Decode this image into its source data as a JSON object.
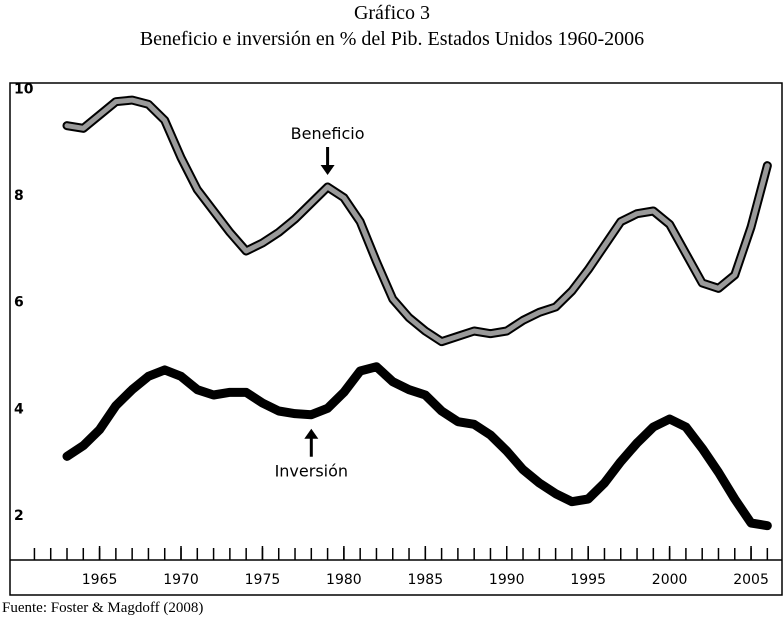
{
  "chart_data": {
    "type": "line",
    "title": "Gráfico 3",
    "subtitle": "Beneficio e inversión en % del Pib. Estados Unidos 1960-2006",
    "source": "Fuente: Foster & Magdoff (2008)",
    "x": [
      1963,
      1964,
      1965,
      1966,
      1967,
      1968,
      1969,
      1970,
      1971,
      1972,
      1973,
      1974,
      1975,
      1976,
      1977,
      1978,
      1979,
      1980,
      1981,
      1982,
      1983,
      1984,
      1985,
      1986,
      1987,
      1988,
      1989,
      1990,
      1991,
      1992,
      1993,
      1994,
      1995,
      1996,
      1997,
      1998,
      1999,
      2000,
      2001,
      2002,
      2003,
      2004,
      2005,
      2006
    ],
    "series": [
      {
        "name": "Beneficio",
        "color": "#9a9a9a",
        "values": [
          9.3,
          9.25,
          9.5,
          9.75,
          9.78,
          9.7,
          9.4,
          8.7,
          8.1,
          7.7,
          7.3,
          6.95,
          7.1,
          7.3,
          7.55,
          7.85,
          8.15,
          7.95,
          7.5,
          6.75,
          6.05,
          5.7,
          5.45,
          5.25,
          5.35,
          5.45,
          5.4,
          5.45,
          5.65,
          5.8,
          5.9,
          6.2,
          6.6,
          7.05,
          7.5,
          7.65,
          7.7,
          7.45,
          6.9,
          6.35,
          6.25,
          6.5,
          7.4,
          8.55
        ]
      },
      {
        "name": "Inversión",
        "color": "#000000",
        "values": [
          3.1,
          3.3,
          3.6,
          4.05,
          4.35,
          4.6,
          4.72,
          4.6,
          4.35,
          4.25,
          4.3,
          4.3,
          4.1,
          3.95,
          3.9,
          3.88,
          4.0,
          4.3,
          4.7,
          4.78,
          4.5,
          4.35,
          4.25,
          3.95,
          3.75,
          3.7,
          3.5,
          3.2,
          2.85,
          2.6,
          2.4,
          2.25,
          2.3,
          2.6,
          3.0,
          3.35,
          3.65,
          3.8,
          3.65,
          3.25,
          2.8,
          2.3,
          1.85,
          1.8
        ]
      }
    ],
    "annotations": [
      {
        "text": "Beneficio",
        "x": 1979,
        "y": 8.15
      },
      {
        "text": "Inversión",
        "x": 1978,
        "y": 3.88
      }
    ],
    "xlim": [
      1959.5,
      2006.9
    ],
    "ylim": [
      0.5,
      10.1
    ],
    "xticks": [
      1965,
      1970,
      1975,
      1980,
      1985,
      1990,
      1995,
      2000,
      2005
    ],
    "xticks_minor": [
      1961,
      1962,
      1963,
      1964,
      1965,
      1966,
      1967,
      1968,
      1969,
      1970,
      1971,
      1972,
      1973,
      1974,
      1975,
      1976,
      1977,
      1978,
      1979,
      1980,
      1981,
      1982,
      1983,
      1984,
      1985,
      1986,
      1987,
      1988,
      1989,
      1990,
      1991,
      1992,
      1993,
      1994,
      1995,
      1996,
      1997,
      1998,
      1999,
      2000,
      2001,
      2002,
      2003,
      2004,
      2005,
      2006
    ],
    "yticks": [
      2,
      4,
      6,
      8,
      10
    ],
    "grid": false
  }
}
